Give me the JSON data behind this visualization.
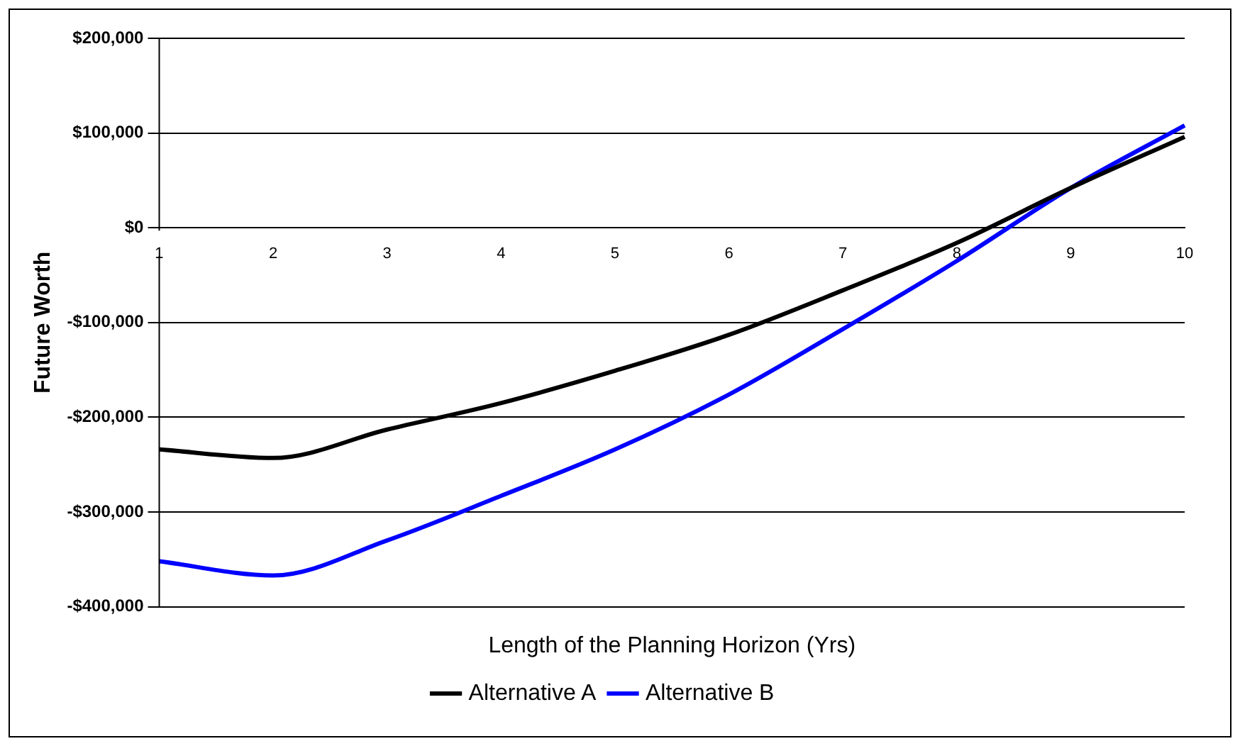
{
  "chart_data": {
    "type": "line",
    "xlabel": "Length of the Planning Horizon (Yrs)",
    "ylabel": "Future Worth",
    "categories": [
      "1",
      "2",
      "3",
      "4",
      "5",
      "6",
      "7",
      "8",
      "9",
      "10"
    ],
    "series": [
      {
        "name": "Alternative A",
        "color": "#000000",
        "values": [
          -234000,
          -243000,
          -213000,
          -185000,
          -151000,
          -113000,
          -66000,
          -16000,
          42000,
          96000
        ]
      },
      {
        "name": "Alternative B",
        "color": "#0000ff",
        "values": [
          -352000,
          -367000,
          -330000,
          -283000,
          -234000,
          -176000,
          -107000,
          -35000,
          42000,
          108000
        ]
      }
    ],
    "ylim": [
      -400000,
      200000
    ],
    "yticks": [
      {
        "value": -400000,
        "label": "-$400,000"
      },
      {
        "value": -300000,
        "label": "-$300,000"
      },
      {
        "value": -200000,
        "label": "-$200,000"
      },
      {
        "value": -100000,
        "label": "-$100,000"
      },
      {
        "value": 0,
        "label": "$0"
      },
      {
        "value": 100000,
        "label": "$100,000"
      },
      {
        "value": 200000,
        "label": "$200,000"
      }
    ],
    "grid": "y",
    "legend": "bottom",
    "marker": "none",
    "line_style": "solid"
  }
}
